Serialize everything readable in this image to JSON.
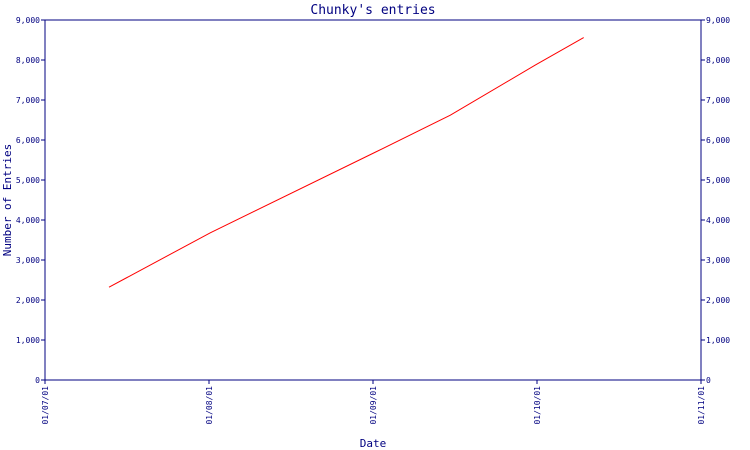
{
  "chart_data": {
    "type": "line",
    "title": "Chunky's entries",
    "xlabel": "Date",
    "ylabel": "Number of Entries",
    "x_ticks": [
      "01/07/01",
      "01/08/01",
      "01/09/01",
      "01/10/01",
      "01/11/01"
    ],
    "y_ticks": [
      "0",
      "1,000",
      "2,000",
      "3,000",
      "4,000",
      "5,000",
      "6,000",
      "7,000",
      "8,000",
      "9,000"
    ],
    "y_ticks_right": [
      "0",
      "1,000",
      "2,000",
      "3,000",
      "4,000",
      "5,000",
      "6,000",
      "7,000",
      "8,000",
      "9,000"
    ],
    "ylim": [
      0,
      9000
    ],
    "xlim": [
      "2001-07-01",
      "2001-11-01"
    ],
    "series": [
      {
        "color": "#ff0000",
        "points": [
          {
            "x": "2001-07-13",
            "y": 2320
          },
          {
            "x": "2001-08-01",
            "y": 3680
          },
          {
            "x": "2001-09-01",
            "y": 5700
          },
          {
            "x": "2001-09-15",
            "y": 6620
          },
          {
            "x": "2001-10-01",
            "y": 7880
          },
          {
            "x": "2001-10-10",
            "y": 8560
          }
        ]
      }
    ],
    "grid": false,
    "axis_color": "#000080"
  }
}
